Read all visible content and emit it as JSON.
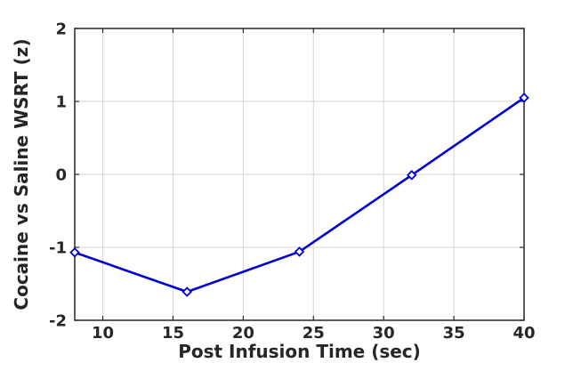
{
  "chart_data": {
    "type": "line",
    "title": "",
    "xlabel": "Post Infusion Time (sec)",
    "ylabel": "Cocaine vs Saline WSRT (z)",
    "x": [
      8,
      16,
      24,
      32,
      40
    ],
    "series": [
      {
        "name": "Cocaine vs Saline WSRT (z)",
        "values": [
          -1.07,
          -1.61,
          -1.06,
          -0.01,
          1.05
        ]
      }
    ],
    "xlim": [
      8,
      40
    ],
    "ylim": [
      -2,
      2
    ],
    "x_ticks": [
      10,
      15,
      20,
      25,
      30,
      35,
      40
    ],
    "y_ticks": [
      -2,
      -1,
      0,
      1,
      2
    ],
    "grid": true,
    "legend_position": "none",
    "marker": "open-diamond",
    "colors": {
      "line": "#0000D5",
      "marker_fill": "#ffffff",
      "axis": "#262626",
      "grid": "#d6d6d6",
      "background": "#ffffff"
    }
  }
}
